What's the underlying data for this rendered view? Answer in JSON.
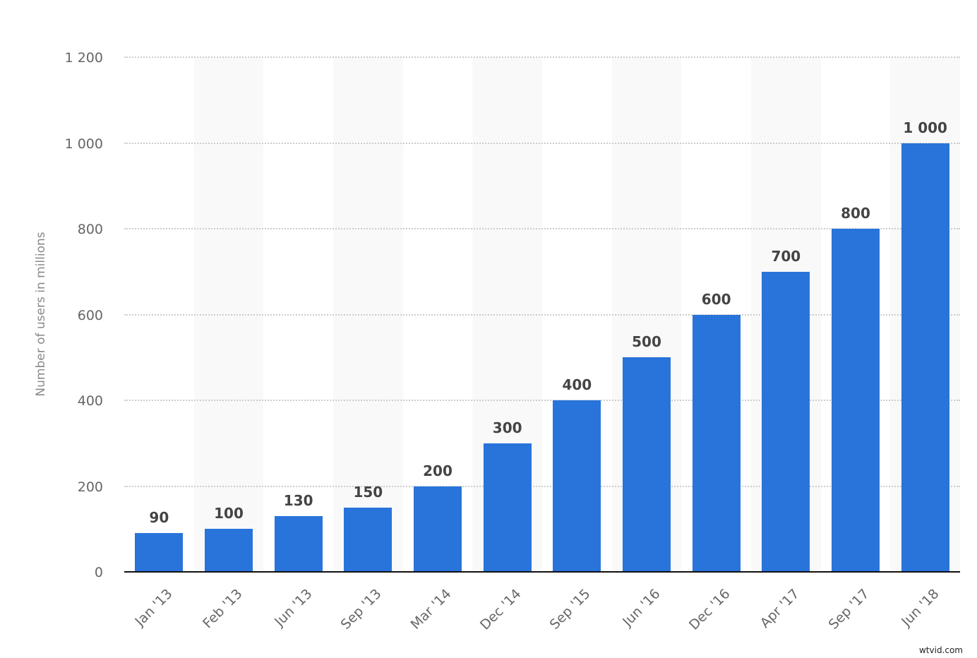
{
  "chart_data": {
    "type": "bar",
    "title": "",
    "xlabel": "",
    "ylabel": "Number of users in millions",
    "categories": [
      "Jan '13",
      "Feb '13",
      "Jun '13",
      "Sep '13",
      "Mar '14",
      "Dec '14",
      "Sep '15",
      "Jun '16",
      "Dec '16",
      "Apr '17",
      "Sep '17",
      "Jun '18"
    ],
    "values": [
      90,
      100,
      130,
      150,
      200,
      300,
      400,
      500,
      600,
      700,
      800,
      1000
    ],
    "value_labels": [
      "90",
      "100",
      "130",
      "150",
      "200",
      "300",
      "400",
      "500",
      "600",
      "700",
      "800",
      "1 000"
    ],
    "ylim": [
      0,
      1200
    ],
    "yticks": [
      0,
      200,
      400,
      600,
      800,
      1000,
      1200
    ],
    "ytick_labels": [
      "0",
      "200",
      "400",
      "600",
      "800",
      "1 000",
      "1 200"
    ],
    "grid": true,
    "legend": null,
    "bar_color": "#2874db"
  },
  "watermark": "wtvid.com"
}
